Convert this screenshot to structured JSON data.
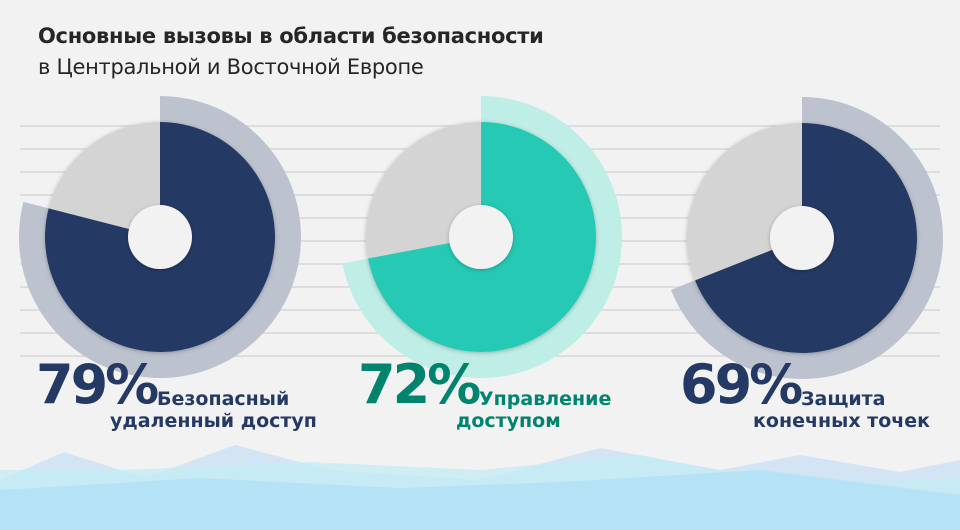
{
  "title": "Основные вызовы в области безопасности",
  "subtitle": "в Центральной и Восточной Европе",
  "colors": {
    "navy": "#243a64",
    "navy_halo": "#bcc3cf",
    "teal": "#26c9b4",
    "teal_halo": "#bfeee7",
    "teal_text": "#00846e",
    "remainder": "#d4d4d4",
    "background": "#f2f2f2"
  },
  "chart_data": {
    "type": "pie",
    "title": "Основные вызовы в области безопасности",
    "subtitle": "в Центральной и Восточной Европе",
    "series": [
      {
        "name": "Безопасный удаленный доступ",
        "label_line1": "Безопасный",
        "label_line2": "удаленный доступ",
        "value": 79,
        "display": "79%",
        "color": "navy"
      },
      {
        "name": "Управление доступом",
        "label_line1": "Управление",
        "label_line2": "доступом",
        "value": 72,
        "display": "72%",
        "color": "teal"
      },
      {
        "name": "Защита конечных точек",
        "label_line1": "Защита",
        "label_line2": "конечных точек",
        "value": 69,
        "display": "69%",
        "color": "navy"
      }
    ],
    "unit": "%"
  }
}
